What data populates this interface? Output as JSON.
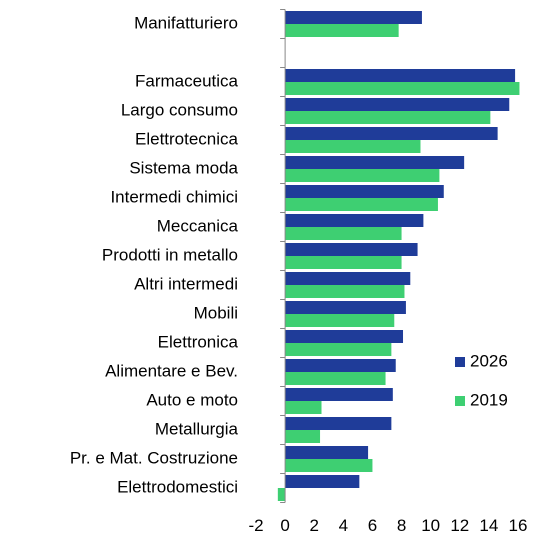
{
  "chart_data": {
    "type": "hbar",
    "categories": [
      "Manifatturiero",
      null,
      "Farmaceutica",
      "Largo consumo",
      "Elettrotecnica",
      "Sistema moda",
      "Intermedi chimici",
      "Meccanica",
      "Prodotti in metallo",
      "Altri intermedi",
      "Mobili",
      "Elettronica",
      "Alimentare e Bev.",
      "Auto e moto",
      "Metallurgia",
      "Pr. e Mat. Costruzione",
      "Elettrodomestici"
    ],
    "series": [
      {
        "name": "2026",
        "color": "#1f3c99",
        "values": [
          9.4,
          null,
          15.8,
          15.4,
          14.6,
          12.3,
          10.9,
          9.5,
          9.1,
          8.6,
          8.3,
          8.1,
          7.6,
          7.4,
          7.3,
          5.7,
          5.1
        ]
      },
      {
        "name": "2019",
        "color": "#3ecf72",
        "values": [
          7.8,
          null,
          16.1,
          14.1,
          9.3,
          10.6,
          10.5,
          8.0,
          8.0,
          8.2,
          7.5,
          7.3,
          6.9,
          2.5,
          2.4,
          6.0,
          -0.5
        ]
      }
    ],
    "xlim": [
      -2,
      16
    ],
    "xticks": [
      -2,
      0,
      2,
      4,
      6,
      8,
      10,
      12,
      14,
      16
    ],
    "legend": "right"
  }
}
